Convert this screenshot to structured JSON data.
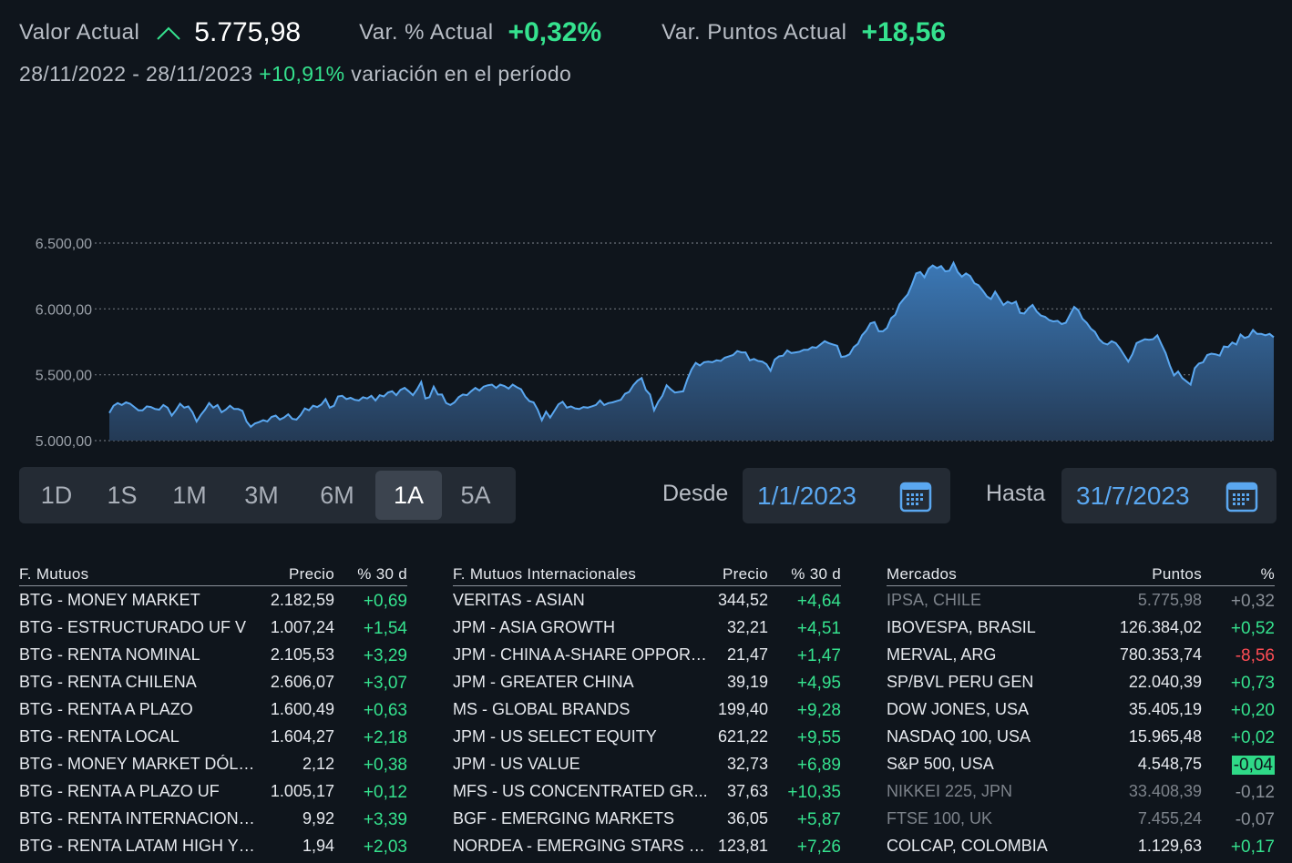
{
  "summary": {
    "valor_label": "Valor Actual",
    "valor": "5.775,98",
    "var_pct_label": "Var. % Actual",
    "var_pct": "+0,32%",
    "var_pts_label": "Var. Puntos Actual",
    "var_pts": "+18,56",
    "trend_icon": "chevron-up-icon",
    "period_range": "28/11/2022 - 28/11/2023",
    "period_change": "+10,91%",
    "period_suffix": "variación en el período"
  },
  "chart_data": {
    "type": "area",
    "title": "",
    "xlabel": "",
    "ylabel": "",
    "ylim": [
      5000,
      6500
    ],
    "y_ticks": [
      "6.500,00",
      "6.000,00",
      "5.500,00",
      "5.000,00"
    ],
    "y_tick_values": [
      6500,
      6000,
      5500,
      5000
    ],
    "grid": true,
    "line_color": "#5aa7f0",
    "values": [
      5210,
      5265,
      5285,
      5270,
      5290,
      5280,
      5255,
      5230,
      5230,
      5260,
      5255,
      5240,
      5235,
      5270,
      5250,
      5190,
      5230,
      5280,
      5250,
      5260,
      5215,
      5145,
      5195,
      5235,
      5285,
      5250,
      5270,
      5215,
      5235,
      5265,
      5240,
      5240,
      5225,
      5145,
      5105,
      5130,
      5140,
      5155,
      5145,
      5180,
      5190,
      5160,
      5175,
      5200,
      5165,
      5160,
      5195,
      5245,
      5230,
      5265,
      5255,
      5275,
      5315,
      5250,
      5265,
      5335,
      5340,
      5315,
      5325,
      5310,
      5305,
      5330,
      5320,
      5340,
      5305,
      5345,
      5335,
      5365,
      5375,
      5345,
      5385,
      5400,
      5375,
      5345,
      5390,
      5445,
      5320,
      5330,
      5410,
      5350,
      5350,
      5285,
      5270,
      5290,
      5330,
      5350,
      5345,
      5375,
      5400,
      5380,
      5410,
      5420,
      5425,
      5400,
      5425,
      5415,
      5395,
      5425,
      5405,
      5390,
      5335,
      5300,
      5290,
      5235,
      5155,
      5220,
      5175,
      5225,
      5275,
      5295,
      5250,
      5260,
      5245,
      5240,
      5255,
      5250,
      5260,
      5270,
      5305,
      5270,
      5285,
      5290,
      5300,
      5310,
      5355,
      5370,
      5420,
      5455,
      5475,
      5385,
      5350,
      5230,
      5295,
      5340,
      5420,
      5390,
      5365,
      5370,
      5375,
      5465,
      5540,
      5590,
      5570,
      5595,
      5600,
      5595,
      5610,
      5605,
      5630,
      5640,
      5650,
      5680,
      5670,
      5670,
      5610,
      5620,
      5605,
      5600,
      5580,
      5530,
      5615,
      5640,
      5645,
      5685,
      5665,
      5670,
      5675,
      5690,
      5690,
      5710,
      5705,
      5730,
      5755,
      5740,
      5730,
      5720,
      5635,
      5640,
      5655,
      5710,
      5735,
      5800,
      5835,
      5890,
      5900,
      5830,
      5830,
      5855,
      5930,
      5955,
      6035,
      6075,
      6110,
      6185,
      6270,
      6280,
      6240,
      6305,
      6330,
      6310,
      6325,
      6285,
      6290,
      6350,
      6280,
      6245,
      6270,
      6250,
      6195,
      6180,
      6140,
      6095,
      6075,
      6130,
      6080,
      6030,
      6055,
      6040,
      6055,
      5970,
      5965,
      6005,
      6030,
      5980,
      5950,
      5940,
      5915,
      5905,
      5910,
      5885,
      5895,
      5955,
      6015,
      5990,
      5925,
      5895,
      5850,
      5825,
      5770,
      5740,
      5730,
      5755,
      5740,
      5700,
      5650,
      5600,
      5655,
      5740,
      5755,
      5770,
      5765,
      5770,
      5800,
      5730,
      5665,
      5570,
      5495,
      5525,
      5475,
      5450,
      5425,
      5550,
      5585,
      5595,
      5650,
      5660,
      5655,
      5645,
      5715,
      5710,
      5745,
      5730,
      5805,
      5780,
      5790,
      5840,
      5810,
      5810,
      5800,
      5810,
      5785
    ]
  },
  "ranges": {
    "buttons": [
      {
        "label": "1D"
      },
      {
        "label": "1S"
      },
      {
        "label": "1M"
      },
      {
        "label": "3M"
      },
      {
        "label": "6M"
      },
      {
        "label": "1A"
      },
      {
        "label": "5A"
      }
    ],
    "active": "1A"
  },
  "dates": {
    "from_label": "Desde",
    "from_value": "1/1/2023",
    "to_label": "Hasta",
    "to_value": "31/7/2023",
    "calendar_icon": "calendar-icon"
  },
  "tables": {
    "mutuos": {
      "headers": [
        "F. Mutuos",
        "Precio",
        "% 30 d"
      ],
      "rows": [
        [
          "BTG - MONEY MARKET",
          "2.182,59",
          "+0,69"
        ],
        [
          "BTG - ESTRUCTURADO UF V",
          "1.007,24",
          "+1,54"
        ],
        [
          "BTG - RENTA NOMINAL",
          "2.105,53",
          "+3,29"
        ],
        [
          "BTG - RENTA CHILENA",
          "2.606,07",
          "+3,07"
        ],
        [
          "BTG - RENTA A PLAZO",
          "1.600,49",
          "+0,63"
        ],
        [
          "BTG - RENTA LOCAL",
          "1.604,27",
          "+2,18"
        ],
        [
          "BTG - MONEY MARKET DÓLAR",
          "2,12",
          "+0,38"
        ],
        [
          "BTG - RENTA A PLAZO UF",
          "1.005,17",
          "+0,12"
        ],
        [
          "BTG - RENTA INTERNACIONA...",
          "9,92",
          "+3,39"
        ],
        [
          "BTG - RENTA LATAM HIGH YIE...",
          "1,94",
          "+2,03"
        ]
      ]
    },
    "internacionales": {
      "headers": [
        "F. Mutuos Internacionales",
        "Precio",
        "% 30 d"
      ],
      "rows": [
        [
          "VERITAS - ASIAN",
          "344,52",
          "+4,64"
        ],
        [
          "JPM - ASIA GROWTH",
          "32,21",
          "+4,51"
        ],
        [
          "JPM - CHINA A-SHARE OPPORT...",
          "21,47",
          "+1,47"
        ],
        [
          "JPM - GREATER CHINA",
          "39,19",
          "+4,95"
        ],
        [
          "MS - GLOBAL BRANDS",
          "199,40",
          "+9,28"
        ],
        [
          "JPM - US SELECT EQUITY",
          "621,22",
          "+9,55"
        ],
        [
          "JPM - US VALUE",
          "32,73",
          "+6,89"
        ],
        [
          "MFS - US CONCENTRATED GR...",
          "37,63",
          "+10,35"
        ],
        [
          "BGF - EMERGING MARKETS",
          "36,05",
          "+5,87"
        ],
        [
          "NORDEA - EMERGING STARS E...",
          "123,81",
          "+7,26"
        ]
      ]
    },
    "mercados": {
      "headers": [
        "Mercados",
        "Puntos",
        "%"
      ],
      "rows": [
        [
          "IPSA, CHILE",
          "5.775,98",
          "+0,32"
        ],
        [
          "IBOVESPA, BRASIL",
          "126.384,02",
          "+0,52"
        ],
        [
          "MERVAL, ARG",
          "780.353,74",
          "-8,56"
        ],
        [
          "SP/BVL PERU GEN",
          "22.040,39",
          "+0,73"
        ],
        [
          "DOW JONES, USA",
          "35.405,19",
          "+0,20"
        ],
        [
          "NASDAQ 100, USA",
          "15.965,48",
          "+0,02"
        ],
        [
          "S&P 500, USA",
          "4.548,75",
          "-0,04"
        ],
        [
          "NIKKEI 225, JPN",
          "33.408,39",
          "-0,12"
        ],
        [
          "FTSE 100, UK",
          "7.455,24",
          "-0,07"
        ],
        [
          "COLCAP, COLOMBIA",
          "1.129,63",
          "+0,17"
        ]
      ],
      "row_states": [
        "dim",
        "",
        "",
        "",
        "",
        "",
        "",
        "dim",
        "dim",
        ""
      ],
      "pct_styles": [
        "grey",
        "green",
        "red",
        "green",
        "green",
        "green",
        "highlight",
        "grey",
        "grey",
        "green"
      ]
    }
  }
}
